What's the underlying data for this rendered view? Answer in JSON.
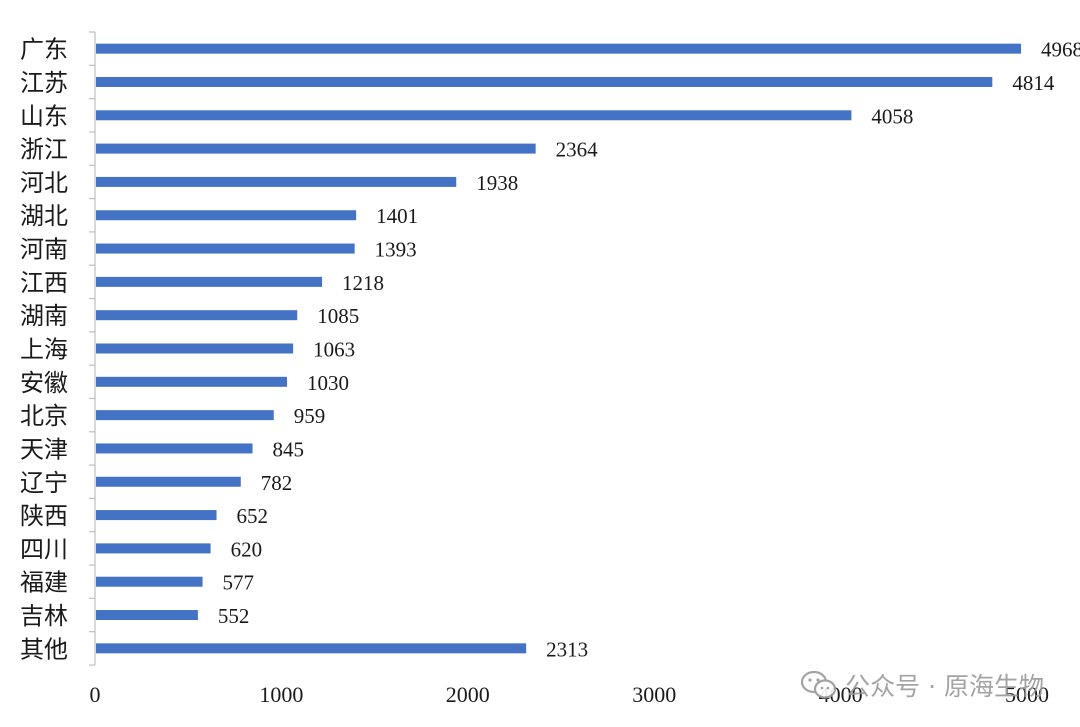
{
  "chart_data": {
    "type": "bar",
    "orientation": "horizontal",
    "title": "",
    "xlabel": "",
    "ylabel": "",
    "xlim": [
      0,
      5000
    ],
    "xticks": [
      0,
      1000,
      2000,
      3000,
      4000,
      5000
    ],
    "grid": false,
    "bar_color": "#4472C4",
    "categories": [
      "广东",
      "江苏",
      "山东",
      "浙江",
      "河北",
      "湖北",
      "河南",
      "江西",
      "湖南",
      "上海",
      "安徽",
      "北京",
      "天津",
      "辽宁",
      "陕西",
      "四川",
      "福建",
      "吉林",
      "其他"
    ],
    "values": [
      4968,
      4814,
      4058,
      2364,
      1938,
      1401,
      1393,
      1218,
      1085,
      1063,
      1030,
      959,
      845,
      782,
      652,
      620,
      577,
      552,
      2313
    ]
  },
  "watermark": {
    "icon": "wechat-icon",
    "text": "公众号 · 原海生物"
  }
}
